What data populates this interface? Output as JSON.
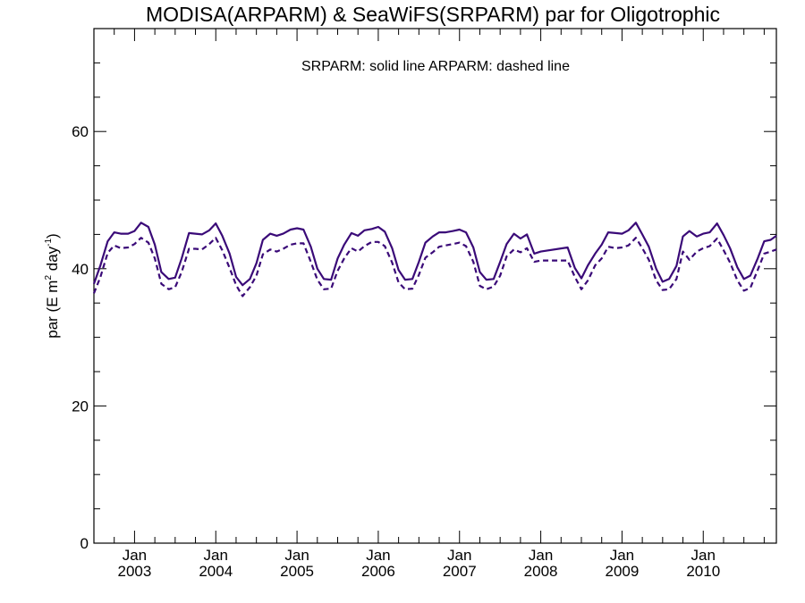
{
  "chart_data": {
    "type": "line",
    "title": "MODISA(ARPARM) & SeaWiFS(SRPARM)  par for Oligotrophic",
    "annotation": "SRPARM: solid line   ARPARM: dashed line",
    "ylabel": {
      "prefix": "par (E m",
      "sup1": "2",
      "middle": " day",
      "sup2": "-1",
      "suffix": ")"
    },
    "ylim": [
      0,
      75
    ],
    "xlim": [
      2002.5,
      2010.9
    ],
    "y_ticks": [
      0,
      20,
      40,
      60
    ],
    "x_ticks": [
      {
        "x": 2003.0,
        "top": "Jan",
        "bottom": "2003"
      },
      {
        "x": 2004.0,
        "top": "Jan",
        "bottom": "2004"
      },
      {
        "x": 2005.0,
        "top": "Jan",
        "bottom": "2005"
      },
      {
        "x": 2006.0,
        "top": "Jan",
        "bottom": "2006"
      },
      {
        "x": 2007.0,
        "top": "Jan",
        "bottom": "2007"
      },
      {
        "x": 2008.0,
        "top": "Jan",
        "bottom": "2008"
      },
      {
        "x": 2009.0,
        "top": "Jan",
        "bottom": "2009"
      },
      {
        "x": 2010.0,
        "top": "Jan",
        "bottom": "2010"
      }
    ],
    "line_color": "#3a0a78",
    "series": [
      {
        "name": "SRPARM",
        "style": "solid",
        "x": [
          2002.5,
          2002.58,
          2002.67,
          2002.75,
          2002.83,
          2002.92,
          2003.0,
          2003.08,
          2003.17,
          2003.25,
          2003.33,
          2003.42,
          2003.5,
          2003.58,
          2003.67,
          2003.75,
          2003.83,
          2003.92,
          2004.0,
          2004.08,
          2004.17,
          2004.25,
          2004.33,
          2004.42,
          2004.5,
          2004.58,
          2004.67,
          2004.75,
          2004.83,
          2004.92,
          2005.0,
          2005.08,
          2005.17,
          2005.25,
          2005.33,
          2005.42,
          2005.5,
          2005.58,
          2005.67,
          2005.75,
          2005.83,
          2005.92,
          2006.0,
          2006.08,
          2006.17,
          2006.25,
          2006.33,
          2006.42,
          2006.5,
          2006.58,
          2006.67,
          2006.75,
          2006.83,
          2006.92,
          2007.0,
          2007.08,
          2007.17,
          2007.25,
          2007.33,
          2007.42,
          2007.5,
          2007.58,
          2007.67,
          2007.75,
          2007.83,
          2007.92,
          2008.0,
          2008.33,
          2008.42,
          2008.5,
          2008.58,
          2008.67,
          2008.75,
          2008.83,
          2008.92,
          2009.0,
          2009.08,
          2009.17,
          2009.25,
          2009.33,
          2009.42,
          2009.5,
          2009.58,
          2009.67,
          2009.75,
          2009.83,
          2009.92,
          2010.0,
          2010.08,
          2010.17,
          2010.25,
          2010.33,
          2010.42,
          2010.5,
          2010.58,
          2010.67,
          2010.75,
          2010.83,
          2010.9
        ],
        "y": [
          37.8,
          40.5,
          44.0,
          45.3,
          45.1,
          45.1,
          45.5,
          46.7,
          46.1,
          43.5,
          39.5,
          38.5,
          38.7,
          41.5,
          45.2,
          45.1,
          45.0,
          45.6,
          46.6,
          44.8,
          42.2,
          38.8,
          37.6,
          38.5,
          40.8,
          44.2,
          45.1,
          44.8,
          45.1,
          45.7,
          45.9,
          45.7,
          43.2,
          40.0,
          38.5,
          38.4,
          41.5,
          43.5,
          45.2,
          44.8,
          45.6,
          45.8,
          46.1,
          45.4,
          43.0,
          39.8,
          38.4,
          38.5,
          41.0,
          43.8,
          44.7,
          45.3,
          45.3,
          45.5,
          45.7,
          45.3,
          43.1,
          39.5,
          38.4,
          38.5,
          41.0,
          43.6,
          45.1,
          44.4,
          45.0,
          42.2,
          42.5,
          43.1,
          40.1,
          38.6,
          40.5,
          42.2,
          43.5,
          45.3,
          45.2,
          45.1,
          45.6,
          46.7,
          45.0,
          43.2,
          40.0,
          38.1,
          38.5,
          40.4,
          44.7,
          45.5,
          44.7,
          45.1,
          45.3,
          46.6,
          44.9,
          43.0,
          40.2,
          38.5,
          39.0,
          41.5,
          44.0,
          44.2,
          44.8
        ]
      },
      {
        "name": "ARPARM",
        "style": "dashed",
        "x": [
          2002.5,
          2002.58,
          2002.67,
          2002.75,
          2002.83,
          2002.92,
          2003.0,
          2003.08,
          2003.17,
          2003.25,
          2003.33,
          2003.42,
          2003.5,
          2003.58,
          2003.67,
          2003.75,
          2003.83,
          2003.92,
          2004.0,
          2004.08,
          2004.17,
          2004.25,
          2004.33,
          2004.42,
          2004.5,
          2004.58,
          2004.67,
          2004.75,
          2004.83,
          2004.92,
          2005.0,
          2005.08,
          2005.17,
          2005.25,
          2005.33,
          2005.42,
          2005.5,
          2005.58,
          2005.67,
          2005.75,
          2005.83,
          2005.92,
          2006.0,
          2006.08,
          2006.17,
          2006.25,
          2006.33,
          2006.42,
          2006.5,
          2006.58,
          2006.67,
          2006.75,
          2006.83,
          2006.92,
          2007.0,
          2007.08,
          2007.17,
          2007.25,
          2007.33,
          2007.42,
          2007.5,
          2007.58,
          2007.67,
          2007.75,
          2007.83,
          2007.92,
          2008.0,
          2008.33,
          2008.42,
          2008.5,
          2008.58,
          2008.67,
          2008.75,
          2008.83,
          2008.92,
          2009.0,
          2009.08,
          2009.17,
          2009.25,
          2009.33,
          2009.42,
          2009.5,
          2009.58,
          2009.67,
          2009.75,
          2009.83,
          2009.92,
          2010.0,
          2010.08,
          2010.17,
          2010.25,
          2010.33,
          2010.42,
          2010.5,
          2010.58,
          2010.67,
          2010.75,
          2010.83,
          2010.9
        ],
        "y": [
          36.4,
          38.8,
          42.3,
          43.4,
          43.0,
          43.1,
          43.6,
          44.5,
          43.8,
          41.5,
          37.8,
          37.0,
          37.3,
          39.5,
          42.9,
          42.9,
          42.8,
          43.6,
          44.5,
          42.7,
          40.1,
          37.6,
          36.0,
          37.3,
          39.0,
          42.1,
          42.8,
          42.5,
          42.9,
          43.5,
          43.7,
          43.7,
          41.0,
          38.4,
          37.0,
          37.1,
          39.7,
          41.5,
          43.0,
          42.5,
          43.3,
          43.9,
          43.9,
          43.3,
          40.9,
          38.0,
          37.0,
          37.1,
          39.1,
          41.6,
          42.4,
          43.2,
          43.4,
          43.6,
          43.8,
          43.3,
          41.0,
          37.5,
          37.0,
          37.4,
          39.0,
          41.8,
          42.8,
          42.4,
          43.0,
          41.0,
          41.2,
          41.2,
          38.8,
          37.0,
          38.3,
          40.5,
          41.5,
          43.2,
          43.0,
          43.1,
          43.4,
          44.5,
          43.0,
          41.3,
          38.3,
          36.9,
          37.0,
          38.5,
          42.5,
          41.3,
          42.5,
          43.0,
          43.3,
          44.4,
          42.7,
          40.9,
          38.3,
          36.8,
          37.2,
          39.8,
          42.2,
          42.5,
          42.8
        ]
      }
    ]
  }
}
